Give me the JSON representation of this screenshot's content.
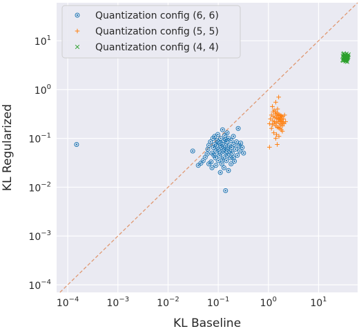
{
  "chart_data": {
    "type": "scatter",
    "title": "",
    "xlabel": "KL Baseline",
    "ylabel": "KL Regularized",
    "xscale": "log",
    "yscale": "log",
    "xlim": [
      6e-05,
      60
    ],
    "ylim": [
      7e-05,
      60
    ],
    "x_ticks": [
      {
        "value": 0.0001,
        "base": "10",
        "exp": "−4"
      },
      {
        "value": 0.001,
        "base": "10",
        "exp": "−3"
      },
      {
        "value": 0.01,
        "base": "10",
        "exp": "−2"
      },
      {
        "value": 0.1,
        "base": "10",
        "exp": "−1"
      },
      {
        "value": 1,
        "base": "10",
        "exp": "0"
      },
      {
        "value": 10,
        "base": "10",
        "exp": "1"
      }
    ],
    "y_ticks": [
      {
        "value": 0.0001,
        "base": "10",
        "exp": "−4"
      },
      {
        "value": 0.001,
        "base": "10",
        "exp": "−3"
      },
      {
        "value": 0.01,
        "base": "10",
        "exp": "−2"
      },
      {
        "value": 0.1,
        "base": "10",
        "exp": "−1"
      },
      {
        "value": 1,
        "base": "10",
        "exp": "0"
      },
      {
        "value": 10,
        "base": "10",
        "exp": "1"
      }
    ],
    "grid": true,
    "background": "#eaeaf2",
    "diagonal": {
      "style": "dashed",
      "color": "#dd8452"
    },
    "legend_position": "top-left",
    "series": [
      {
        "name": "Quantization config (6, 6)",
        "marker": "circle-dot",
        "color": "#1f77b4",
        "points": [
          [
            0.00015,
            0.075
          ],
          [
            0.14,
            0.0085
          ],
          [
            0.031,
            0.055
          ],
          [
            0.04,
            0.028
          ],
          [
            0.045,
            0.031
          ],
          [
            0.05,
            0.035
          ],
          [
            0.055,
            0.041
          ],
          [
            0.06,
            0.048
          ],
          [
            0.062,
            0.06
          ],
          [
            0.065,
            0.072
          ],
          [
            0.07,
            0.085
          ],
          [
            0.072,
            0.033
          ],
          [
            0.075,
            0.05
          ],
          [
            0.078,
            0.1
          ],
          [
            0.08,
            0.065
          ],
          [
            0.082,
            0.045
          ],
          [
            0.085,
            0.11
          ],
          [
            0.088,
            0.04
          ],
          [
            0.09,
            0.055
          ],
          [
            0.092,
            0.07
          ],
          [
            0.095,
            0.09
          ],
          [
            0.098,
            0.12
          ],
          [
            0.1,
            0.06
          ],
          [
            0.1,
            0.035
          ],
          [
            0.105,
            0.045
          ],
          [
            0.108,
            0.08
          ],
          [
            0.11,
            0.05
          ],
          [
            0.112,
            0.1
          ],
          [
            0.115,
            0.065
          ],
          [
            0.118,
            0.03
          ],
          [
            0.12,
            0.075
          ],
          [
            0.122,
            0.15
          ],
          [
            0.125,
            0.055
          ],
          [
            0.128,
            0.04
          ],
          [
            0.13,
            0.09
          ],
          [
            0.132,
            0.06
          ],
          [
            0.135,
            0.115
          ],
          [
            0.14,
            0.07
          ],
          [
            0.142,
            0.05
          ],
          [
            0.145,
            0.035
          ],
          [
            0.148,
            0.085
          ],
          [
            0.15,
            0.13
          ],
          [
            0.152,
            0.06
          ],
          [
            0.155,
            0.045
          ],
          [
            0.16,
            0.1
          ],
          [
            0.165,
            0.07
          ],
          [
            0.17,
            0.055
          ],
          [
            0.175,
            0.04
          ],
          [
            0.18,
            0.09
          ],
          [
            0.185,
            0.065
          ],
          [
            0.19,
            0.05
          ],
          [
            0.2,
            0.11
          ],
          [
            0.205,
            0.075
          ],
          [
            0.21,
            0.034
          ],
          [
            0.22,
            0.06
          ],
          [
            0.23,
            0.085
          ],
          [
            0.24,
            0.045
          ],
          [
            0.25,
            0.16
          ],
          [
            0.26,
            0.07
          ],
          [
            0.27,
            0.055
          ],
          [
            0.28,
            0.08
          ],
          [
            0.3,
            0.065
          ],
          [
            0.32,
            0.05
          ],
          [
            0.11,
            0.02
          ],
          [
            0.13,
            0.025
          ],
          [
            0.16,
            0.022
          ],
          [
            0.065,
            0.03
          ],
          [
            0.075,
            0.025
          ],
          [
            0.09,
            0.028
          ],
          [
            0.12,
            0.036
          ],
          [
            0.2,
            0.04
          ],
          [
            0.18,
            0.03
          ],
          [
            0.1,
            0.085
          ],
          [
            0.085,
            0.075
          ],
          [
            0.14,
            0.095
          ]
        ]
      },
      {
        "name": "Quantization config (5, 5)",
        "marker": "plus",
        "color": "#ff7f0e",
        "points": [
          [
            1.05,
            0.066
          ],
          [
            1.5,
            0.075
          ],
          [
            1.6,
            0.7
          ],
          [
            1.4,
            0.55
          ],
          [
            1.2,
            0.45
          ],
          [
            1.3,
            0.38
          ],
          [
            1.4,
            0.35
          ],
          [
            1.5,
            0.33
          ],
          [
            1.6,
            0.31
          ],
          [
            1.7,
            0.3
          ],
          [
            1.8,
            0.29
          ],
          [
            1.9,
            0.28
          ],
          [
            1.15,
            0.3
          ],
          [
            1.25,
            0.28
          ],
          [
            1.35,
            0.27
          ],
          [
            1.45,
            0.26
          ],
          [
            1.55,
            0.25
          ],
          [
            1.65,
            0.24
          ],
          [
            1.75,
            0.23
          ],
          [
            1.85,
            0.22
          ],
          [
            1.95,
            0.21
          ],
          [
            2.05,
            0.2
          ],
          [
            1.2,
            0.19
          ],
          [
            1.3,
            0.2
          ],
          [
            1.4,
            0.18
          ],
          [
            1.5,
            0.17
          ],
          [
            1.6,
            0.165
          ],
          [
            1.7,
            0.16
          ],
          [
            1.8,
            0.15
          ],
          [
            1.1,
            0.25
          ],
          [
            1.22,
            0.23
          ],
          [
            1.33,
            0.22
          ],
          [
            1.44,
            0.21
          ],
          [
            1.56,
            0.22
          ],
          [
            1.67,
            0.2
          ],
          [
            1.78,
            0.19
          ],
          [
            1.9,
            0.18
          ],
          [
            2.0,
            0.25
          ],
          [
            2.1,
            0.3
          ],
          [
            1.25,
            0.35
          ],
          [
            1.37,
            0.32
          ],
          [
            1.48,
            0.3
          ],
          [
            1.58,
            0.29
          ],
          [
            1.68,
            0.27
          ],
          [
            1.73,
            0.26
          ],
          [
            1.83,
            0.24
          ],
          [
            1.05,
            0.2
          ],
          [
            1.28,
            0.13
          ],
          [
            1.45,
            0.12
          ],
          [
            1.62,
            0.11
          ],
          [
            1.4,
            0.1
          ],
          [
            1.9,
            0.14
          ],
          [
            2.2,
            0.22
          ],
          [
            1.15,
            0.16
          ],
          [
            1.52,
            0.4
          ]
        ]
      },
      {
        "name": "Quantization config (4, 4)",
        "marker": "x",
        "color": "#2ca02c",
        "points": [
          [
            30,
            4.0
          ],
          [
            31,
            4.2
          ],
          [
            32,
            4.5
          ],
          [
            33,
            4.8
          ],
          [
            34,
            5.0
          ],
          [
            35,
            4.6
          ],
          [
            36,
            4.3
          ],
          [
            37,
            4.1
          ],
          [
            38,
            4.4
          ],
          [
            39,
            4.7
          ],
          [
            30.5,
            4.9
          ],
          [
            31.5,
            4.6
          ],
          [
            32.5,
            4.3
          ],
          [
            33.5,
            4.0
          ],
          [
            34.5,
            3.8
          ],
          [
            35.5,
            4.1
          ],
          [
            36.5,
            4.4
          ],
          [
            37.5,
            4.7
          ],
          [
            38.5,
            5.0
          ],
          [
            39.5,
            5.2
          ],
          [
            31,
            5.3
          ],
          [
            32,
            5.5
          ],
          [
            33,
            5.2
          ],
          [
            34,
            4.5
          ],
          [
            35,
            4.2
          ],
          [
            36,
            3.9
          ],
          [
            37,
            3.7
          ],
          [
            33,
            4.6
          ],
          [
            34,
            4.7
          ],
          [
            35,
            4.8
          ],
          [
            36,
            4.9
          ],
          [
            32,
            4.0
          ],
          [
            31,
            3.9
          ],
          [
            38,
            4.5
          ],
          [
            36,
            5.4
          ]
        ]
      }
    ]
  },
  "legend": {
    "items": [
      {
        "label": "Quantization config (6, 6)",
        "marker": "circle-dot",
        "color": "#1f77b4"
      },
      {
        "label": "Quantization config (5, 5)",
        "marker": "plus",
        "color": "#ff7f0e"
      },
      {
        "label": "Quantization config (4, 4)",
        "marker": "x",
        "color": "#2ca02c"
      }
    ]
  }
}
